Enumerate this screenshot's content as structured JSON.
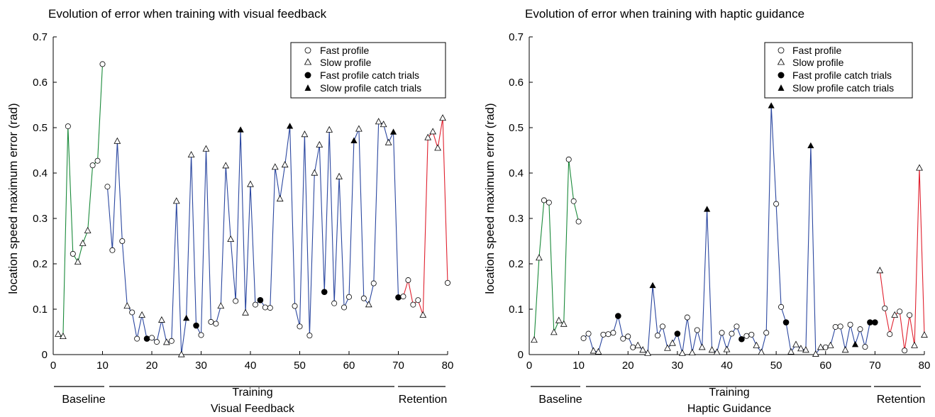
{
  "chart_data": [
    {
      "type": "line",
      "title": "Evolution of error when training with visual feedback",
      "ylabel": "location speed maximum error (rad)",
      "xlim": [
        0,
        80
      ],
      "ylim": [
        0,
        0.7
      ],
      "xticks": [
        0,
        10,
        20,
        30,
        40,
        50,
        60,
        70,
        80
      ],
      "yticks": [
        0,
        0.1,
        0.2,
        0.3,
        0.4,
        0.5,
        0.6,
        0.7
      ],
      "ytick_labels": [
        "0",
        "0.1",
        "0.2",
        "0.3",
        "0.4",
        "0.5",
        "0.6",
        "0.7"
      ],
      "phases": [
        {
          "name": "Baseline",
          "x_range": [
            0,
            10
          ],
          "color": "#1a8a3a"
        },
        {
          "name": "Training",
          "sub_label": "Visual Feedback",
          "x_range": [
            11,
            70
          ],
          "color": "#2b47a0"
        },
        {
          "name": "Retention",
          "x_range": [
            71,
            80
          ],
          "color": "#e0202e"
        }
      ],
      "legend": {
        "position": "top-right",
        "entries": [
          "Fast profile",
          "Slow profile",
          "Fast profile catch trials",
          "Slow profile catch trials"
        ]
      },
      "points": [
        [
          1,
          0.045,
          "t"
        ],
        [
          2,
          0.04,
          "t"
        ],
        [
          3,
          0.503,
          "o"
        ],
        [
          4,
          0.222,
          "o"
        ],
        [
          5,
          0.204,
          "t"
        ],
        [
          6,
          0.245,
          "t"
        ],
        [
          7,
          0.273,
          "t"
        ],
        [
          8,
          0.417,
          "o"
        ],
        [
          9,
          0.427,
          "o"
        ],
        [
          10,
          0.64,
          "o"
        ],
        [
          11,
          0.37,
          "o"
        ],
        [
          12,
          0.23,
          "o"
        ],
        [
          13,
          0.47,
          "t"
        ],
        [
          14,
          0.25,
          "o"
        ],
        [
          15,
          0.107,
          "t"
        ],
        [
          16,
          0.093,
          "o"
        ],
        [
          17,
          0.035,
          "o"
        ],
        [
          18,
          0.087,
          "t"
        ],
        [
          19,
          0.035,
          "f"
        ],
        [
          20,
          0.037,
          "o"
        ],
        [
          21,
          0.028,
          "o"
        ],
        [
          22,
          0.076,
          "t"
        ],
        [
          23,
          0.027,
          "t"
        ],
        [
          24,
          0.03,
          "o"
        ],
        [
          25,
          0.338,
          "t"
        ],
        [
          26,
          0.0,
          "t"
        ],
        [
          27,
          0.08,
          "T"
        ],
        [
          28,
          0.44,
          "t"
        ],
        [
          29,
          0.064,
          "f"
        ],
        [
          30,
          0.043,
          "o"
        ],
        [
          31,
          0.453,
          "t"
        ],
        [
          32,
          0.072,
          "o"
        ],
        [
          33,
          0.068,
          "o"
        ],
        [
          34,
          0.107,
          "t"
        ],
        [
          35,
          0.416,
          "t"
        ],
        [
          36,
          0.254,
          "t"
        ],
        [
          37,
          0.118,
          "o"
        ],
        [
          38,
          0.495,
          "T"
        ],
        [
          39,
          0.092,
          "t"
        ],
        [
          40,
          0.375,
          "t"
        ],
        [
          41,
          0.11,
          "o"
        ],
        [
          42,
          0.12,
          "f"
        ],
        [
          43,
          0.104,
          "o"
        ],
        [
          44,
          0.103,
          "o"
        ],
        [
          45,
          0.413,
          "t"
        ],
        [
          46,
          0.343,
          "t"
        ],
        [
          47,
          0.418,
          "t"
        ],
        [
          48,
          0.503,
          "T"
        ],
        [
          49,
          0.107,
          "o"
        ],
        [
          50,
          0.062,
          "o"
        ],
        [
          51,
          0.485,
          "t"
        ],
        [
          52,
          0.042,
          "o"
        ],
        [
          53,
          0.4,
          "t"
        ],
        [
          54,
          0.462,
          "t"
        ],
        [
          55,
          0.138,
          "f"
        ],
        [
          56,
          0.495,
          "t"
        ],
        [
          57,
          0.113,
          "o"
        ],
        [
          58,
          0.392,
          "t"
        ],
        [
          59,
          0.104,
          "o"
        ],
        [
          60,
          0.127,
          "o"
        ],
        [
          61,
          0.471,
          "T"
        ],
        [
          62,
          0.497,
          "t"
        ],
        [
          63,
          0.124,
          "o"
        ],
        [
          64,
          0.11,
          "t"
        ],
        [
          65,
          0.157,
          "o"
        ],
        [
          66,
          0.513,
          "t"
        ],
        [
          67,
          0.507,
          "t"
        ],
        [
          68,
          0.467,
          "t"
        ],
        [
          69,
          0.49,
          "T"
        ],
        [
          70,
          0.126,
          "f"
        ],
        [
          71,
          0.128,
          "o"
        ],
        [
          72,
          0.164,
          "o"
        ],
        [
          73,
          0.11,
          "o"
        ],
        [
          74,
          0.12,
          "o"
        ],
        [
          75,
          0.087,
          "t"
        ],
        [
          76,
          0.478,
          "t"
        ],
        [
          77,
          0.491,
          "t"
        ],
        [
          78,
          0.455,
          "t"
        ],
        [
          79,
          0.521,
          "t"
        ],
        [
          80,
          0.158,
          "o"
        ]
      ]
    },
    {
      "type": "line",
      "title": "Evolution of error when training with haptic guidance",
      "ylabel": "location speed maximum error (rad)",
      "xlim": [
        0,
        80
      ],
      "ylim": [
        0,
        0.7
      ],
      "xticks": [
        0,
        10,
        20,
        30,
        40,
        50,
        60,
        70,
        80
      ],
      "yticks": [
        0,
        0.1,
        0.2,
        0.3,
        0.4,
        0.5,
        0.6,
        0.7
      ],
      "ytick_labels": [
        "0",
        "0.1",
        "0.2",
        "0.3",
        "0.4",
        "0.5",
        "0.6",
        "0.7"
      ],
      "phases": [
        {
          "name": "Baseline",
          "x_range": [
            0,
            10
          ],
          "color": "#1a8a3a"
        },
        {
          "name": "Training",
          "sub_label": "Haptic Guidance",
          "x_range": [
            11,
            70
          ],
          "color": "#2b47a0"
        },
        {
          "name": "Retention",
          "x_range": [
            71,
            80
          ],
          "color": "#e0202e"
        }
      ],
      "legend": {
        "position": "top-right",
        "entries": [
          "Fast profile",
          "Slow profile",
          "Fast profile catch trials",
          "Slow profile catch trials"
        ]
      },
      "points": [
        [
          1,
          0.032,
          "t"
        ],
        [
          2,
          0.213,
          "t"
        ],
        [
          3,
          0.34,
          "o"
        ],
        [
          4,
          0.335,
          "o"
        ],
        [
          5,
          0.049,
          "t"
        ],
        [
          6,
          0.075,
          "t"
        ],
        [
          7,
          0.067,
          "t"
        ],
        [
          8,
          0.43,
          "o"
        ],
        [
          9,
          0.338,
          "o"
        ],
        [
          10,
          0.293,
          "o"
        ],
        [
          11,
          0.036,
          "o"
        ],
        [
          12,
          0.046,
          "o"
        ],
        [
          13,
          0.008,
          "t"
        ],
        [
          14,
          0.006,
          "t"
        ],
        [
          15,
          0.044,
          "o"
        ],
        [
          16,
          0.045,
          "o"
        ],
        [
          17,
          0.048,
          "o"
        ],
        [
          18,
          0.085,
          "f"
        ],
        [
          19,
          0.035,
          "o"
        ],
        [
          20,
          0.04,
          "o"
        ],
        [
          21,
          0.016,
          "o"
        ],
        [
          22,
          0.02,
          "t"
        ],
        [
          23,
          0.01,
          "t"
        ],
        [
          24,
          0.003,
          "t"
        ],
        [
          25,
          0.152,
          "T"
        ],
        [
          26,
          0.042,
          "o"
        ],
        [
          27,
          0.062,
          "o"
        ],
        [
          28,
          0.014,
          "t"
        ],
        [
          29,
          0.025,
          "t"
        ],
        [
          30,
          0.046,
          "f"
        ],
        [
          31,
          0.003,
          "t"
        ],
        [
          32,
          0.082,
          "o"
        ],
        [
          33,
          0.004,
          "t"
        ],
        [
          34,
          0.054,
          "o"
        ],
        [
          35,
          0.016,
          "t"
        ],
        [
          36,
          0.32,
          "T"
        ],
        [
          37,
          0.01,
          "t"
        ],
        [
          38,
          0.005,
          "t"
        ],
        [
          39,
          0.048,
          "o"
        ],
        [
          40,
          0.011,
          "t"
        ],
        [
          41,
          0.046,
          "o"
        ],
        [
          42,
          0.062,
          "o"
        ],
        [
          43,
          0.034,
          "f"
        ],
        [
          44,
          0.041,
          "o"
        ],
        [
          45,
          0.044,
          "o"
        ],
        [
          46,
          0.02,
          "t"
        ],
        [
          47,
          0.005,
          "t"
        ],
        [
          48,
          0.048,
          "o"
        ],
        [
          49,
          0.548,
          "T"
        ],
        [
          50,
          0.332,
          "o"
        ],
        [
          51,
          0.105,
          "o"
        ],
        [
          52,
          0.071,
          "f"
        ],
        [
          53,
          0.006,
          "t"
        ],
        [
          54,
          0.022,
          "t"
        ],
        [
          55,
          0.013,
          "t"
        ],
        [
          56,
          0.01,
          "t"
        ],
        [
          57,
          0.46,
          "T"
        ],
        [
          58,
          0.001,
          "t"
        ],
        [
          59,
          0.016,
          "t"
        ],
        [
          60,
          0.016,
          "o"
        ],
        [
          61,
          0.02,
          "t"
        ],
        [
          62,
          0.061,
          "o"
        ],
        [
          63,
          0.062,
          "o"
        ],
        [
          64,
          0.01,
          "t"
        ],
        [
          65,
          0.066,
          "o"
        ],
        [
          66,
          0.022,
          "T"
        ],
        [
          67,
          0.056,
          "o"
        ],
        [
          68,
          0.017,
          "o"
        ],
        [
          69,
          0.071,
          "f"
        ],
        [
          70,
          0.071,
          "f"
        ],
        [
          71,
          0.185,
          "t"
        ],
        [
          72,
          0.102,
          "o"
        ],
        [
          73,
          0.045,
          "o"
        ],
        [
          74,
          0.087,
          "t"
        ],
        [
          75,
          0.095,
          "o"
        ],
        [
          76,
          0.009,
          "o"
        ],
        [
          77,
          0.087,
          "o"
        ],
        [
          78,
          0.02,
          "t"
        ],
        [
          79,
          0.411,
          "t"
        ],
        [
          80,
          0.043,
          "t"
        ]
      ]
    }
  ]
}
